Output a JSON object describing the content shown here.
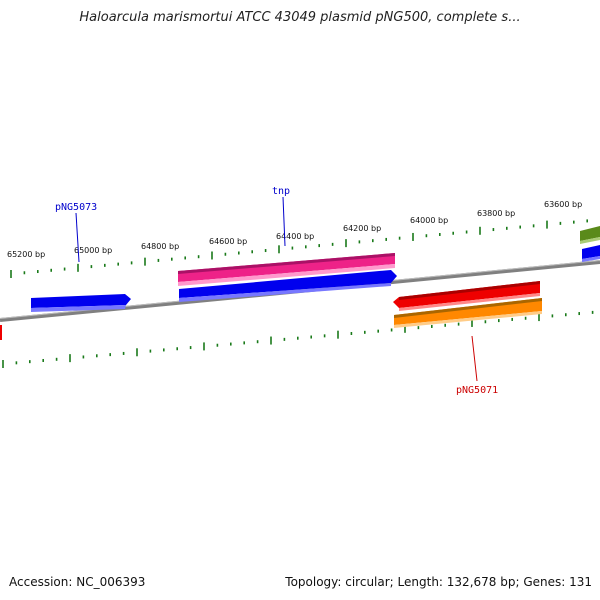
{
  "header": {
    "title": "Haloarcula marismortui ATCC 43049 plasmid pNG500, complete s..."
  },
  "footer": {
    "accession": "Accession: NC_006393",
    "stats": "Topology: circular; Length: 132,678 bp; Genes: 131"
  },
  "ticks": {
    "labels": [
      "65200 bp",
      "65000 bp",
      "64800 bp",
      "64600 bp",
      "64400 bp",
      "64200 bp",
      "64000 bp",
      "63800 bp",
      "63600 bp"
    ]
  },
  "genes": [
    {
      "label": "pNG5073",
      "color": "#0000cc"
    },
    {
      "label": "tnp",
      "color": "#0000cc"
    },
    {
      "label": "pNG5071",
      "color": "#cc0000"
    }
  ],
  "colors": {
    "backbone": "#808080",
    "tick": "#1a7a1a",
    "forward_blue": "#0000ee",
    "pink": "#ee2288",
    "red": "#ee0000",
    "orange": "#ff8800",
    "olive": "#5a8a1a"
  }
}
